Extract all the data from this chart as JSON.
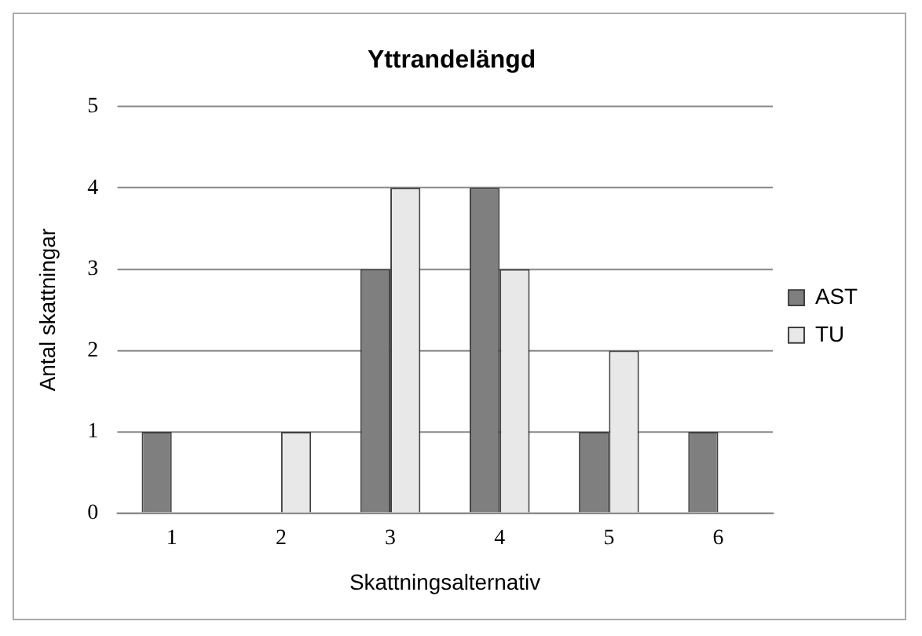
{
  "chart_data": {
    "type": "bar",
    "title": "Yttrandelängd",
    "xlabel": "Skattningsalternativ",
    "ylabel": "Antal skattningar",
    "categories": [
      "1",
      "2",
      "3",
      "4",
      "5",
      "6"
    ],
    "series": [
      {
        "name": "AST",
        "color": "#7f7f7f",
        "values": [
          1,
          0,
          3,
          4,
          1,
          1
        ]
      },
      {
        "name": "TU",
        "color": "#e8e8e8",
        "values": [
          0,
          1,
          4,
          3,
          2,
          0
        ]
      }
    ],
    "ylim": [
      0,
      5
    ],
    "yticks": [
      0,
      1,
      2,
      3,
      4,
      5
    ],
    "grid": "y",
    "legend": "right"
  }
}
